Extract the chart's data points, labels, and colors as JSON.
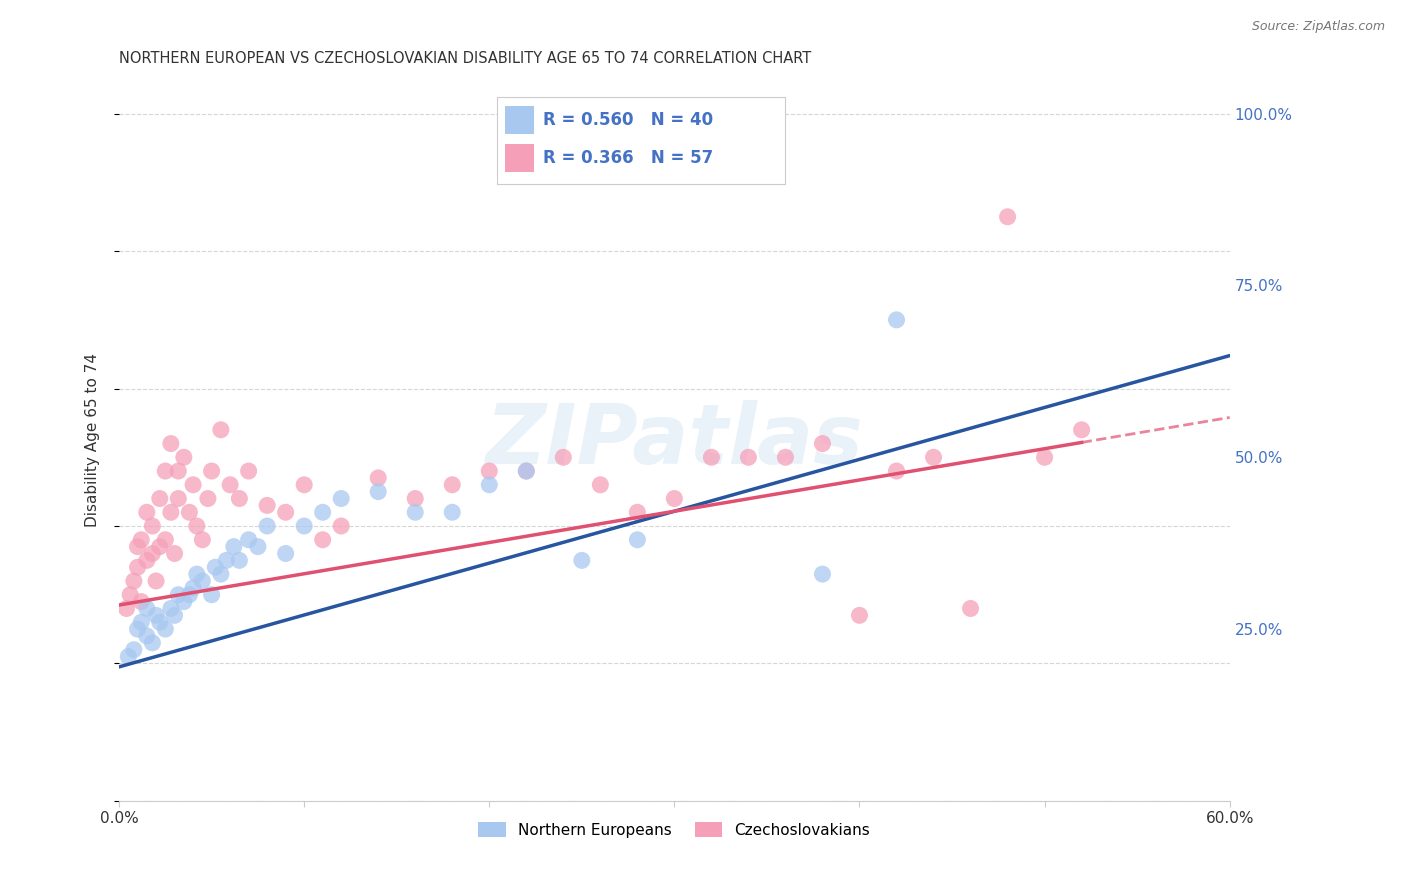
{
  "title": "NORTHERN EUROPEAN VS CZECHOSLOVAKIAN DISABILITY AGE 65 TO 74 CORRELATION CHART",
  "source": "Source: ZipAtlas.com",
  "ylabel": "Disability Age 65 to 74",
  "xlim": [
    0.0,
    0.6
  ],
  "ylim": [
    0.0,
    1.05
  ],
  "yticks": [
    0.0,
    0.25,
    0.5,
    0.75,
    1.0
  ],
  "yticklabels": [
    "",
    "25.0%",
    "50.0%",
    "75.0%",
    "100.0%"
  ],
  "blue_color": "#A8C8F0",
  "pink_color": "#F5A0B8",
  "blue_line_color": "#2855A0",
  "pink_line_color": "#E05070",
  "background_color": "#FFFFFF",
  "grid_color": "#CCCCCC",
  "watermark": "ZIPatlas",
  "blue_R": "R = 0.560",
  "blue_N": "N = 40",
  "pink_R": "R = 0.366",
  "pink_N": "N = 57",
  "blue_intercept": 0.195,
  "blue_slope": 0.755,
  "pink_intercept": 0.285,
  "pink_slope": 0.455,
  "blue_scatter_x": [
    0.005,
    0.008,
    0.01,
    0.012,
    0.015,
    0.015,
    0.018,
    0.02,
    0.022,
    0.025,
    0.028,
    0.03,
    0.032,
    0.035,
    0.038,
    0.04,
    0.042,
    0.045,
    0.05,
    0.052,
    0.055,
    0.058,
    0.062,
    0.065,
    0.07,
    0.075,
    0.08,
    0.09,
    0.1,
    0.11,
    0.12,
    0.14,
    0.16,
    0.18,
    0.2,
    0.22,
    0.25,
    0.28,
    0.38,
    0.42
  ],
  "blue_scatter_y": [
    0.21,
    0.22,
    0.25,
    0.26,
    0.24,
    0.28,
    0.23,
    0.27,
    0.26,
    0.25,
    0.28,
    0.27,
    0.3,
    0.29,
    0.3,
    0.31,
    0.33,
    0.32,
    0.3,
    0.34,
    0.33,
    0.35,
    0.37,
    0.35,
    0.38,
    0.37,
    0.4,
    0.36,
    0.4,
    0.42,
    0.44,
    0.45,
    0.42,
    0.42,
    0.46,
    0.48,
    0.35,
    0.38,
    0.33,
    0.7
  ],
  "pink_scatter_x": [
    0.004,
    0.006,
    0.008,
    0.01,
    0.01,
    0.012,
    0.012,
    0.015,
    0.015,
    0.018,
    0.018,
    0.02,
    0.022,
    0.022,
    0.025,
    0.025,
    0.028,
    0.028,
    0.03,
    0.032,
    0.032,
    0.035,
    0.038,
    0.04,
    0.042,
    0.045,
    0.048,
    0.05,
    0.055,
    0.06,
    0.065,
    0.07,
    0.08,
    0.09,
    0.1,
    0.11,
    0.12,
    0.14,
    0.16,
    0.18,
    0.2,
    0.22,
    0.24,
    0.26,
    0.28,
    0.3,
    0.32,
    0.34,
    0.36,
    0.38,
    0.4,
    0.42,
    0.44,
    0.46,
    0.48,
    0.5,
    0.52
  ],
  "pink_scatter_y": [
    0.28,
    0.3,
    0.32,
    0.34,
    0.37,
    0.29,
    0.38,
    0.35,
    0.42,
    0.36,
    0.4,
    0.32,
    0.37,
    0.44,
    0.38,
    0.48,
    0.42,
    0.52,
    0.36,
    0.44,
    0.48,
    0.5,
    0.42,
    0.46,
    0.4,
    0.38,
    0.44,
    0.48,
    0.54,
    0.46,
    0.44,
    0.48,
    0.43,
    0.42,
    0.46,
    0.38,
    0.4,
    0.47,
    0.44,
    0.46,
    0.48,
    0.48,
    0.5,
    0.46,
    0.42,
    0.44,
    0.5,
    0.5,
    0.5,
    0.52,
    0.27,
    0.48,
    0.5,
    0.28,
    0.85,
    0.5,
    0.54
  ]
}
